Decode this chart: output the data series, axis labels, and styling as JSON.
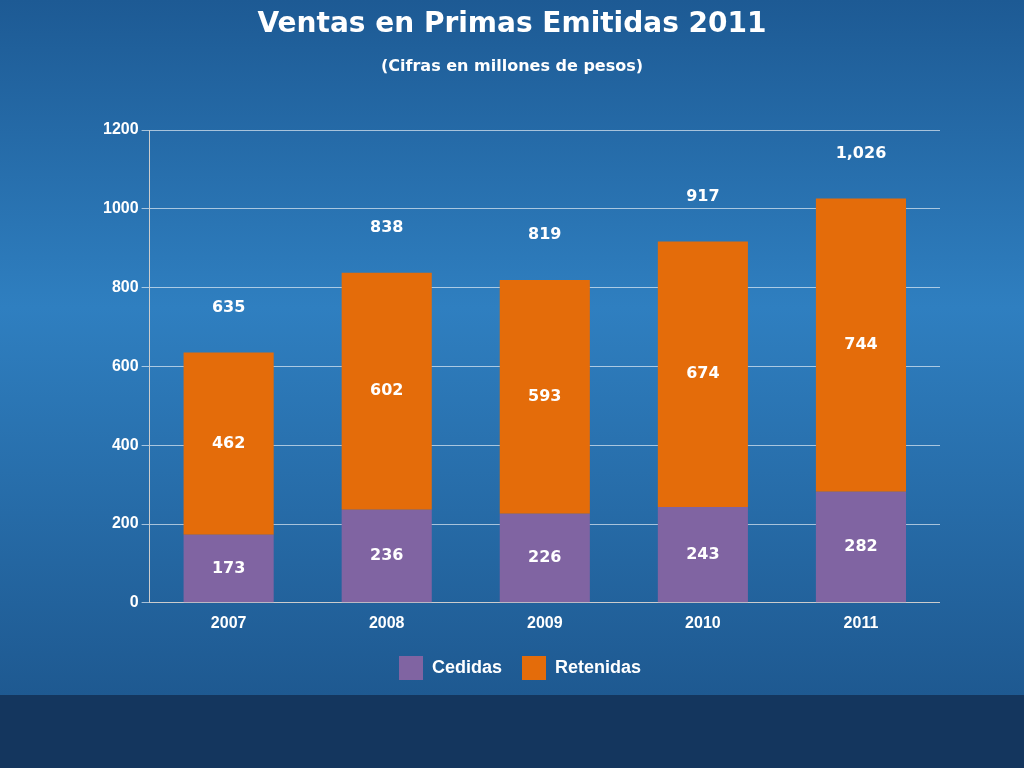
{
  "chart_data": {
    "type": "bar",
    "title": "Ventas en Primas Emitidas 2011",
    "subtitle": "(Cifras en millones de pesos)",
    "categories": [
      "2007",
      "2008",
      "2009",
      "2010",
      "2011"
    ],
    "series": [
      {
        "name": "Cedidas",
        "color": "#8064a2",
        "values": [
          173,
          236,
          226,
          243,
          282
        ]
      },
      {
        "name": "Retenidas",
        "color": "#e46c0a",
        "values": [
          462,
          602,
          593,
          674,
          744
        ]
      }
    ],
    "stacked": true,
    "data_labels": true,
    "totals": [
      "635",
      "838",
      "819",
      "917",
      "1,026"
    ],
    "ylim": [
      0,
      1200
    ],
    "yticks": [
      0,
      200,
      400,
      600,
      800,
      1000,
      1200
    ],
    "grid": "y",
    "legend": "bottom"
  }
}
